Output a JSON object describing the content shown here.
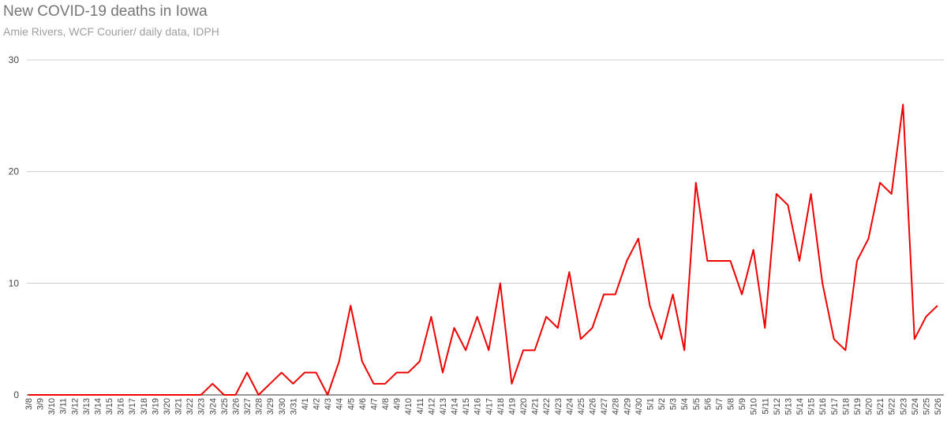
{
  "chart_data": {
    "type": "line",
    "title": "New COVID-19 deaths in Iowa",
    "subtitle": "Amie Rivers, WCF Courier/ daily data, IDPH",
    "categories": [
      "3/8",
      "3/9",
      "3/10",
      "3/11",
      "3/12",
      "3/13",
      "3/14",
      "3/15",
      "3/16",
      "3/17",
      "3/18",
      "3/19",
      "3/20",
      "3/21",
      "3/22",
      "3/23",
      "3/24",
      "3/25",
      "3/26",
      "3/27",
      "3/28",
      "3/29",
      "3/30",
      "3/31",
      "4/1",
      "4/2",
      "4/3",
      "4/4",
      "4/5",
      "4/6",
      "4/7",
      "4/8",
      "4/9",
      "4/10",
      "4/11",
      "4/12",
      "4/13",
      "4/14",
      "4/15",
      "4/16",
      "4/17",
      "4/18",
      "4/19",
      "4/20",
      "4/21",
      "4/22",
      "4/23",
      "4/24",
      "4/25",
      "4/26",
      "4/27",
      "4/28",
      "4/29",
      "4/30",
      "5/1",
      "5/2",
      "5/3",
      "5/4",
      "5/5",
      "5/6",
      "5/7",
      "5/8",
      "5/9",
      "5/10",
      "5/11",
      "5/12",
      "5/13",
      "5/14",
      "5/15",
      "5/16",
      "5/17",
      "5/18",
      "5/19",
      "5/20",
      "5/21",
      "5/22",
      "5/23",
      "5/24",
      "5/25",
      "5/26"
    ],
    "series": [
      {
        "color": "#ee0000",
        "values": [
          0,
          0,
          0,
          0,
          0,
          0,
          0,
          0,
          0,
          0,
          0,
          0,
          0,
          0,
          0,
          0,
          1,
          0,
          0,
          2,
          0,
          1,
          2,
          1,
          2,
          2,
          0,
          3,
          8,
          3,
          1,
          1,
          2,
          2,
          3,
          7,
          2,
          6,
          4,
          7,
          4,
          10,
          1,
          4,
          4,
          7,
          6,
          11,
          5,
          6,
          9,
          9,
          12,
          14,
          8,
          5,
          9,
          4,
          19,
          12,
          12,
          12,
          9,
          13,
          6,
          18,
          17,
          12,
          18,
          10,
          5,
          4,
          12,
          14,
          19,
          18,
          26,
          5,
          7,
          8
        ]
      }
    ],
    "ylim": [
      0,
      30
    ],
    "yticks": [
      0,
      10,
      20,
      30
    ],
    "grid": true
  }
}
